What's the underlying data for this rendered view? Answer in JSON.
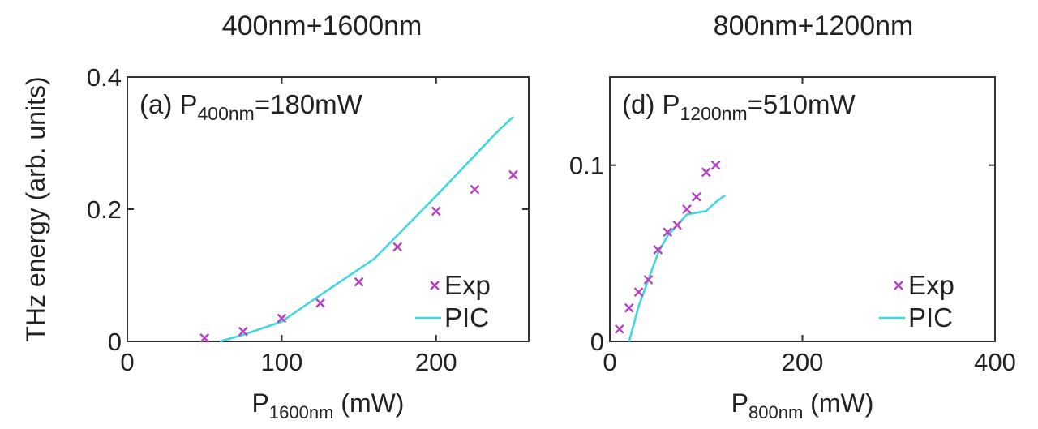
{
  "figure": {
    "ylabel": "THz energy (arb. units)"
  },
  "chart_data": [
    {
      "type": "scatter",
      "title": "400nm+1600nm",
      "annotation": {
        "prefix": "(a) P",
        "sub": "400nm",
        "suffix": "=180mW"
      },
      "xlabel": {
        "base": "P",
        "sub": "1600nm",
        "suffix": " (mW)"
      },
      "xlim": [
        0,
        260
      ],
      "ylim": [
        0,
        0.4
      ],
      "xticks": [
        "0",
        "100",
        "200"
      ],
      "yticks": [
        "0",
        "0.2",
        "0.4"
      ],
      "legend_position": "bottom-right",
      "colors": {
        "exp": "#b93fc4",
        "pic": "#3fd8e0"
      },
      "series": [
        {
          "name": "Exp",
          "marker": "x",
          "x": [
            50,
            75,
            100,
            125,
            150,
            175,
            200,
            225,
            250
          ],
          "y": [
            0.005,
            0.015,
            0.035,
            0.058,
            0.09,
            0.143,
            0.197,
            0.23,
            0.252
          ]
        },
        {
          "name": "PIC",
          "marker": "line",
          "x": [
            60,
            75,
            100,
            125,
            160,
            200,
            240,
            250
          ],
          "y": [
            0.0,
            0.01,
            0.03,
            0.07,
            0.125,
            0.22,
            0.318,
            0.34
          ]
        }
      ]
    },
    {
      "type": "scatter",
      "title": "800nm+1200nm",
      "annotation": {
        "prefix": "(d) P",
        "sub": "1200nm",
        "suffix": "=510mW"
      },
      "xlabel": {
        "base": "P",
        "sub": "800nm",
        "suffix": " (mW)"
      },
      "xlim": [
        0,
        400
      ],
      "ylim": [
        0,
        0.15
      ],
      "xticks": [
        "0",
        "200",
        "400"
      ],
      "yticks": [
        "0",
        "0.1"
      ],
      "legend_position": "bottom-right",
      "colors": {
        "exp": "#b93fc4",
        "pic": "#3fd8e0"
      },
      "series": [
        {
          "name": "Exp",
          "marker": "x",
          "x": [
            10,
            20,
            30,
            40,
            50,
            60,
            70,
            80,
            90,
            100,
            110
          ],
          "y": [
            0.007,
            0.019,
            0.028,
            0.035,
            0.052,
            0.062,
            0.066,
            0.075,
            0.082,
            0.096,
            0.1
          ]
        },
        {
          "name": "PIC",
          "marker": "line",
          "x": [
            20,
            30,
            40,
            50,
            60,
            70,
            80,
            90,
            100,
            110,
            120
          ],
          "y": [
            0.0,
            0.02,
            0.035,
            0.05,
            0.06,
            0.066,
            0.072,
            0.073,
            0.074,
            0.079,
            0.083
          ]
        }
      ]
    }
  ]
}
